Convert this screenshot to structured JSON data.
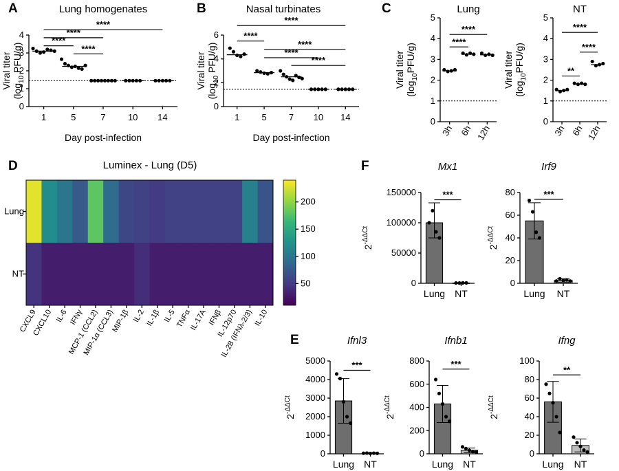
{
  "colorbar": {
    "ticks": [
      "200",
      "150",
      "100",
      "50"
    ],
    "stops": [
      "#fde725",
      "#90d743",
      "#35b779",
      "#21918c",
      "#31688e",
      "#443983",
      "#440154"
    ]
  },
  "chart_data": [
    {
      "id": "A",
      "panel_label": "A",
      "type": "scatter",
      "title": "Lung homogenates",
      "ylabel_l1": "Viral titer",
      "ylabel_l2a": "(log",
      "ylabel_sub": "10",
      "ylabel_l2b": " PFU/g)",
      "xlabel": "Day post-infection",
      "categories": [
        "1",
        "5",
        "7",
        "10",
        "14"
      ],
      "ylim": [
        0,
        4
      ],
      "yticks": [
        "0",
        "1",
        "2",
        "3",
        "4"
      ],
      "limit_line": 1.45,
      "points": [
        [
          3.25,
          3.1,
          3.0,
          3.05,
          3.2,
          3.15,
          3.1
        ],
        [
          2.65,
          2.4,
          2.3,
          2.2,
          2.25,
          2.15,
          2.1,
          2.3
        ],
        [
          1.45,
          1.45,
          1.45,
          1.45,
          1.45,
          1.45,
          1.45,
          1.45
        ],
        [
          1.45,
          1.45,
          1.45,
          1.45,
          1.45
        ],
        [
          1.45,
          1.45,
          1.45,
          1.45,
          1.45
        ]
      ],
      "means": [
        3.1,
        2.25,
        1.45,
        1.45,
        1.45
      ],
      "sig": [
        {
          "a": 0,
          "b": 4,
          "label": "****",
          "y": 4.3
        },
        {
          "a": 0,
          "b": 2,
          "label": "****",
          "y": 3.85
        },
        {
          "a": 0,
          "b": 1,
          "label": "****",
          "y": 3.4
        },
        {
          "a": 1,
          "b": 2,
          "label": "****",
          "y": 2.95
        }
      ]
    },
    {
      "id": "B",
      "panel_label": "B",
      "type": "scatter",
      "title": "Nasal turbinates",
      "ylabel_l1": "Viral titer",
      "ylabel_l2a": "(log",
      "ylabel_sub": "10",
      "ylabel_l2b": " PFU/g)",
      "xlabel": "Day post-infection",
      "categories": [
        "1",
        "5",
        "7",
        "10",
        "14"
      ],
      "ylim": [
        0,
        6
      ],
      "yticks": [
        "0",
        "2",
        "4",
        "6"
      ],
      "limit_line": 1.45,
      "points": [
        [
          4.9,
          4.6,
          4.3,
          4.2,
          4.4
        ],
        [
          3.0,
          2.9,
          2.8,
          2.75,
          2.85
        ],
        [
          3.0,
          2.7,
          2.5,
          2.3,
          2.2,
          2.6,
          2.45,
          2.35
        ],
        [
          1.45,
          1.45,
          1.45,
          1.45,
          1.45
        ],
        [
          1.45,
          1.45,
          1.45,
          1.45,
          1.45
        ]
      ],
      "means": [
        4.35,
        2.85,
        2.5,
        1.45,
        1.45
      ],
      "sig": [
        {
          "a": 0,
          "b": 4,
          "label": "****",
          "y": 6.8
        },
        {
          "a": 0,
          "b": 1,
          "label": "****",
          "y": 5.5
        },
        {
          "a": 1,
          "b": 4,
          "label": "****",
          "y": 4.8
        },
        {
          "a": 1,
          "b": 3,
          "label": "****",
          "y": 4.1
        },
        {
          "a": 2,
          "b": 4,
          "label": "****",
          "y": 3.45
        }
      ]
    },
    {
      "id": "C1",
      "panel_label": "C",
      "type": "scatter",
      "title": "Lung",
      "ylabel_l1": "Viral titer",
      "ylabel_l2a": "(log",
      "ylabel_sub": "10",
      "ylabel_l2b": "PFU/g)",
      "xlabel": "",
      "categories": [
        "3h",
        "6h",
        "12h"
      ],
      "ylim": [
        0,
        5
      ],
      "yticks": [
        "0",
        "1",
        "2",
        "3",
        "4",
        "5"
      ],
      "limit_line": 1,
      "points": [
        [
          2.5,
          2.42,
          2.45,
          2.5
        ],
        [
          3.3,
          3.22,
          3.3,
          3.25
        ],
        [
          3.3,
          3.2,
          3.25,
          3.2
        ]
      ],
      "means": [
        2.45,
        3.25,
        3.22
      ],
      "sig": [
        {
          "a": 0,
          "b": 2,
          "label": "****",
          "y": 4.2
        },
        {
          "a": 0,
          "b": 1,
          "label": "****",
          "y": 3.6
        }
      ]
    },
    {
      "id": "C2",
      "panel_label": "",
      "type": "scatter",
      "title": "NT",
      "ylabel_l1": "Viral titer",
      "ylabel_l2a": "(log",
      "ylabel_sub": "10",
      "ylabel_l2b": "PFU/g)",
      "xlabel": "",
      "categories": [
        "3h",
        "6h",
        "12h"
      ],
      "ylim": [
        0,
        5
      ],
      "yticks": [
        "0",
        "1",
        "2",
        "3",
        "4",
        "5"
      ],
      "limit_line": 1,
      "points": [
        [
          1.55,
          1.45,
          1.5,
          1.55
        ],
        [
          1.85,
          1.8,
          1.85,
          1.8
        ],
        [
          2.9,
          2.7,
          2.75,
          2.8
        ]
      ],
      "means": [
        1.5,
        1.82,
        2.75
      ],
      "sig": [
        {
          "a": 0,
          "b": 2,
          "label": "****",
          "y": 4.3
        },
        {
          "a": 1,
          "b": 2,
          "label": "****",
          "y": 3.35
        },
        {
          "a": 0,
          "b": 1,
          "label": "**",
          "y": 2.2
        }
      ]
    },
    {
      "id": "D",
      "panel_label": "D",
      "type": "heatmap",
      "title": "Luminex - Lung (D5)",
      "rows": [
        "Lung",
        "NT"
      ],
      "columns": [
        "CXCL9",
        "CXCL10",
        "IL-6",
        "IFNγ",
        "MCP-1 (CCL2)",
        "MIP-1α (CCL3)",
        "MIP-1β",
        "IL-2",
        "IL-1β",
        "IL-5",
        "TNFα",
        "IL-17A",
        "IFNβ",
        "IL-12p70",
        "IL-28 (IFNλ-2/3)",
        "IL-10"
      ],
      "values": [
        [
          230,
          120,
          100,
          75,
          180,
          90,
          60,
          55,
          50,
          55,
          55,
          55,
          55,
          55,
          110,
          70
        ],
        [
          45,
          30,
          30,
          30,
          30,
          30,
          30,
          40,
          30,
          30,
          30,
          30,
          30,
          30,
          30,
          30
        ]
      ],
      "vmin": 10,
      "vmax": 240
    },
    {
      "id": "F1",
      "panel_label": "F",
      "type": "bar",
      "title": "Mx1",
      "ylabel": "2",
      "ylabel_sup": "-ΔΔCt",
      "categories": [
        "Lung",
        "NT"
      ],
      "ylim": [
        0,
        150000
      ],
      "yticks": [
        "0",
        "50000",
        "100000",
        "150000"
      ],
      "bars": [
        100000,
        500
      ],
      "err": [
        [
          75000,
          133000
        ],
        [
          0,
          1000
        ]
      ],
      "points": [
        [
          100000,
          120000,
          85000,
          75000
        ],
        [
          500,
          400,
          700,
          600
        ]
      ],
      "sig": [
        {
          "label": "***",
          "y": 138000
        }
      ]
    },
    {
      "id": "F2",
      "panel_label": "",
      "type": "bar",
      "title": "Irf9",
      "ylabel": "2",
      "ylabel_sup": "-ΔΔCt",
      "categories": [
        "Lung",
        "NT"
      ],
      "ylim": [
        0,
        80
      ],
      "yticks": [
        "0",
        "20",
        "40",
        "60",
        "80"
      ],
      "bars": [
        55,
        2.5
      ],
      "err": [
        [
          39,
          71
        ],
        [
          1,
          4
        ]
      ],
      "points": [
        [
          73,
          63,
          45,
          40
        ],
        [
          2,
          4,
          2.5,
          3,
          2
        ]
      ],
      "sig": [
        {
          "label": "***",
          "y": 74
        }
      ]
    },
    {
      "id": "E1",
      "panel_label": "E",
      "type": "bar",
      "title": "Ifnl3",
      "ylabel": "2",
      "ylabel_sup": "-ΔΔCt",
      "categories": [
        "Lung",
        "NT"
      ],
      "ylim": [
        0,
        5000
      ],
      "yticks": [
        "0",
        "1000",
        "2000",
        "3000",
        "4000",
        "5000"
      ],
      "bars": [
        2850,
        30
      ],
      "err": [
        [
          1650,
          4050
        ],
        [
          0,
          60
        ]
      ],
      "points": [
        [
          4300,
          4050,
          2800,
          2000,
          1650
        ],
        [
          30,
          40,
          20,
          35,
          25
        ]
      ],
      "sig": [
        {
          "label": "***",
          "y": 4500
        }
      ]
    },
    {
      "id": "E2",
      "panel_label": "",
      "type": "bar",
      "title": "Ifnb1",
      "ylabel": "2",
      "ylabel_sup": "-ΔΔCt",
      "categories": [
        "Lung",
        "NT"
      ],
      "ylim": [
        0,
        800
      ],
      "yticks": [
        "0",
        "200",
        "400",
        "600",
        "800"
      ],
      "bars": [
        430,
        30
      ],
      "err": [
        [
          270,
          590
        ],
        [
          10,
          50
        ]
      ],
      "points": [
        [
          640,
          520,
          430,
          320,
          280
        ],
        [
          60,
          45,
          30,
          20,
          15
        ]
      ],
      "sig": [
        {
          "label": "***",
          "y": 730
        }
      ]
    },
    {
      "id": "E3",
      "panel_label": "",
      "type": "bar",
      "title": "Ifng",
      "ylabel": "2",
      "ylabel_sup": "-ΔΔCt",
      "categories": [
        "Lung",
        "NT"
      ],
      "ylim": [
        0,
        100
      ],
      "yticks": [
        "0",
        "20",
        "40",
        "60",
        "80",
        "100"
      ],
      "bars": [
        56,
        9
      ],
      "err": [
        [
          34,
          78
        ],
        [
          2,
          16
        ]
      ],
      "points": [
        [
          75,
          65,
          55,
          40,
          23
        ],
        [
          18,
          12,
          8,
          4,
          2
        ]
      ],
      "sig": [
        {
          "label": "**",
          "y": 85
        }
      ]
    }
  ]
}
